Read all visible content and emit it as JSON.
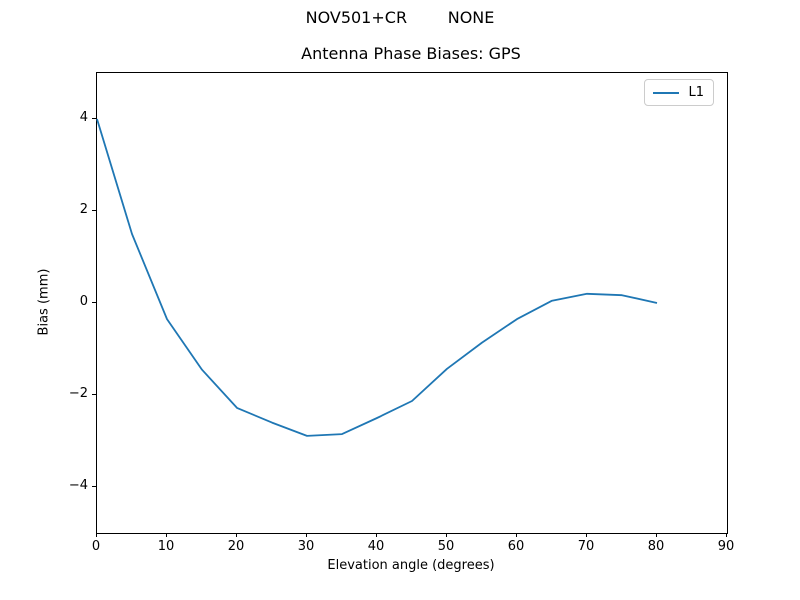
{
  "figure": {
    "suptitle": "NOV501+CR        NONE"
  },
  "chart_data": {
    "type": "line",
    "title": "Antenna Phase Biases: GPS",
    "xlabel": "Elevation angle (degrees)",
    "ylabel": "Bias (mm)",
    "xlim": [
      0,
      90
    ],
    "ylim": [
      -5,
      5
    ],
    "xticks": [
      0,
      10,
      20,
      30,
      40,
      50,
      60,
      70,
      80,
      90
    ],
    "yticks": [
      -4,
      -2,
      0,
      2,
      4
    ],
    "grid": false,
    "legend_position": "upper right",
    "series": [
      {
        "name": "L1",
        "color": "#1f77b4",
        "x": [
          0,
          5,
          10,
          15,
          20,
          25,
          30,
          35,
          40,
          45,
          50,
          55,
          60,
          65,
          70,
          75,
          80
        ],
        "y": [
          4.0,
          1.5,
          -0.35,
          -1.45,
          -2.28,
          -2.6,
          -2.89,
          -2.85,
          -2.5,
          -2.13,
          -1.43,
          -0.86,
          -0.35,
          0.05,
          0.2,
          0.17,
          0.0
        ]
      }
    ]
  }
}
